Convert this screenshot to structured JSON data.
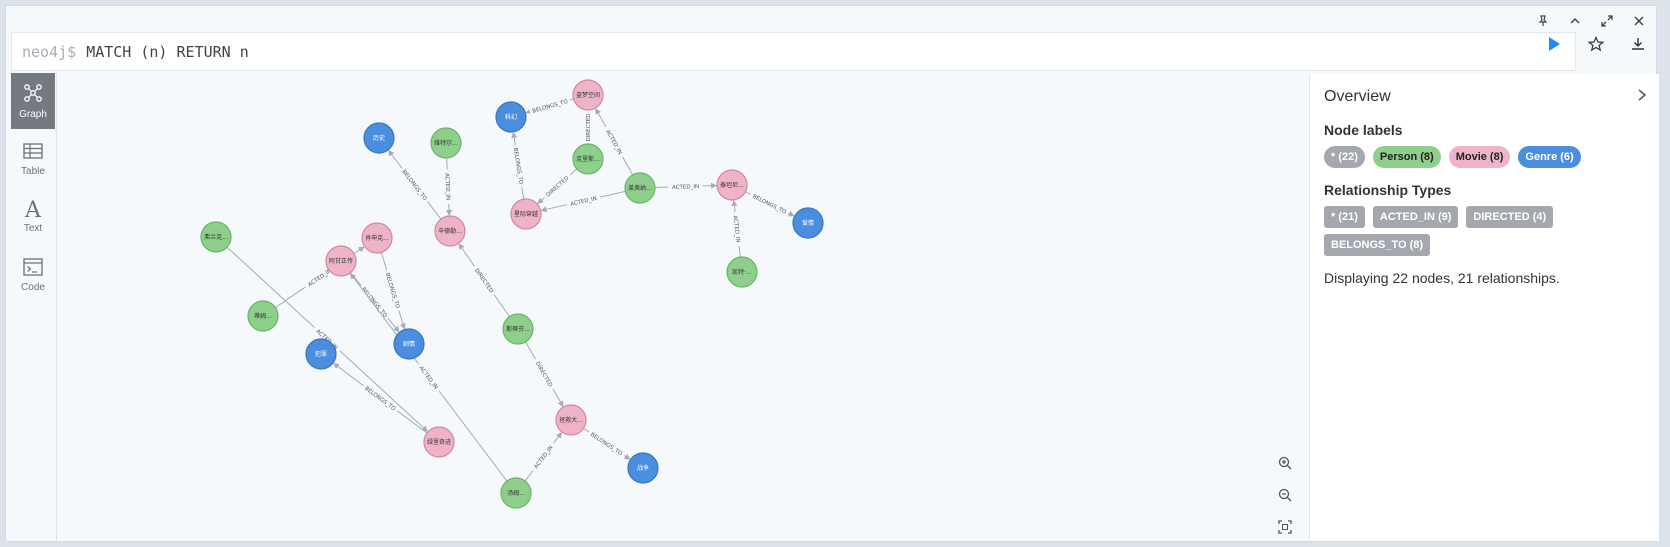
{
  "editor": {
    "prompt": "neo4j$",
    "query": "MATCH (n) RETURN n"
  },
  "sidebar": {
    "items": [
      {
        "label": "Graph",
        "icon": "graph-icon",
        "active": true
      },
      {
        "label": "Table",
        "icon": "table-icon",
        "active": false
      },
      {
        "label": "Text",
        "icon": "text-icon",
        "active": false
      },
      {
        "label": "Code",
        "icon": "code-icon",
        "active": false
      }
    ]
  },
  "overview": {
    "title": "Overview",
    "node_labels_title": "Node labels",
    "node_labels": [
      {
        "label": "* (22)",
        "color": "#a4a8ae",
        "text_color": "#ffffff"
      },
      {
        "label": "Person (8)",
        "color": "#8ecf8b",
        "text_color": "#222222"
      },
      {
        "label": "Movie (8)",
        "color": "#efb3c8",
        "text_color": "#222222"
      },
      {
        "label": "Genre (6)",
        "color": "#4b8ee0",
        "text_color": "#ffffff"
      }
    ],
    "rel_types_title": "Relationship Types",
    "rel_types": [
      "* (21)",
      "ACTED_IN (9)",
      "DIRECTED (4)",
      "BELONGS_TO (8)"
    ],
    "summary": "Displaying 22 nodes, 21 relationships."
  },
  "colors": {
    "person": "#8ecf8b",
    "movie": "#efb3c8",
    "genre": "#4b8ee0",
    "accent": "#1a8cff"
  },
  "graph": {
    "nodes": [
      {
        "id": "g1",
        "type": "genre",
        "label": "历史"
      },
      {
        "id": "p1",
        "type": "person",
        "label": "维特尔..."
      },
      {
        "id": "g2",
        "type": "genre",
        "label": "科幻"
      },
      {
        "id": "m1",
        "type": "movie",
        "label": "星际穿越"
      },
      {
        "id": "p2",
        "type": "person",
        "label": "克里斯..."
      },
      {
        "id": "m2",
        "type": "movie",
        "label": "盗梦空间"
      },
      {
        "id": "p3",
        "type": "person",
        "label": "莱奥纳..."
      },
      {
        "id": "m3",
        "type": "movie",
        "label": "泰坦尼..."
      },
      {
        "id": "g3",
        "type": "genre",
        "label": "爱情"
      },
      {
        "id": "p4",
        "type": "person",
        "label": "凯特·..."
      },
      {
        "id": "p5",
        "type": "person",
        "label": "汤姆..."
      },
      {
        "id": "m4",
        "type": "movie",
        "label": "辛德勒..."
      },
      {
        "id": "m5",
        "type": "movie",
        "label": "拯救大..."
      },
      {
        "id": "m6",
        "type": "movie",
        "label": "肖申克..."
      },
      {
        "id": "p6",
        "type": "person",
        "label": "弗兰克..."
      },
      {
        "id": "m7",
        "type": "movie",
        "label": "阿甘正传"
      },
      {
        "id": "p7",
        "type": "person",
        "label": "蒂姆..."
      },
      {
        "id": "g4",
        "type": "genre",
        "label": "剧情"
      },
      {
        "id": "g5",
        "type": "genre",
        "label": "犯罪"
      },
      {
        "id": "m8",
        "type": "movie",
        "label": "绿里奇迹"
      },
      {
        "id": "p8",
        "type": "person",
        "label": "斯蒂芬..."
      },
      {
        "id": "g6",
        "type": "genre",
        "label": "战争"
      }
    ],
    "edges": [
      {
        "from": "m2",
        "to": "g2",
        "label": "BELONGS_TO"
      },
      {
        "from": "p2",
        "to": "m2",
        "label": "DIRECTED"
      },
      {
        "from": "p3",
        "to": "m2",
        "label": "ACTED_IN"
      },
      {
        "from": "p2",
        "to": "m1",
        "label": "DIRECTED"
      },
      {
        "from": "m1",
        "to": "g2",
        "label": "BELONGS_TO"
      },
      {
        "from": "p3",
        "to": "m1",
        "label": "ACTED_IN"
      },
      {
        "from": "p3",
        "to": "m3",
        "label": "ACTED_IN"
      },
      {
        "from": "m3",
        "to": "g3",
        "label": "BELONGS_TO"
      },
      {
        "from": "p4",
        "to": "m3",
        "label": "ACTED_IN"
      },
      {
        "from": "m4",
        "to": "g1",
        "label": "BELONGS_TO"
      },
      {
        "from": "p1",
        "to": "m4",
        "label": "ACTED_IN"
      },
      {
        "from": "p7",
        "to": "m6",
        "label": "ACTED_IN"
      },
      {
        "from": "p6",
        "to": "m8",
        "label": "ACTED_IN"
      },
      {
        "from": "m8",
        "to": "g5",
        "label": "BELONGS_TO"
      },
      {
        "from": "m6",
        "to": "g4",
        "label": "BELONGS_TO"
      },
      {
        "from": "p8",
        "to": "m4",
        "label": "DIRECTED"
      },
      {
        "from": "p8",
        "to": "m5",
        "label": "DIRECTED"
      },
      {
        "from": "m7",
        "to": "g4",
        "label": "BELONGS_TO"
      },
      {
        "from": "p5",
        "to": "m7",
        "label": "ACTED_IN"
      },
      {
        "from": "p5",
        "to": "m5",
        "label": "ACTED_IN"
      },
      {
        "from": "m5",
        "to": "g6",
        "label": "BELONGS_TO"
      }
    ]
  }
}
